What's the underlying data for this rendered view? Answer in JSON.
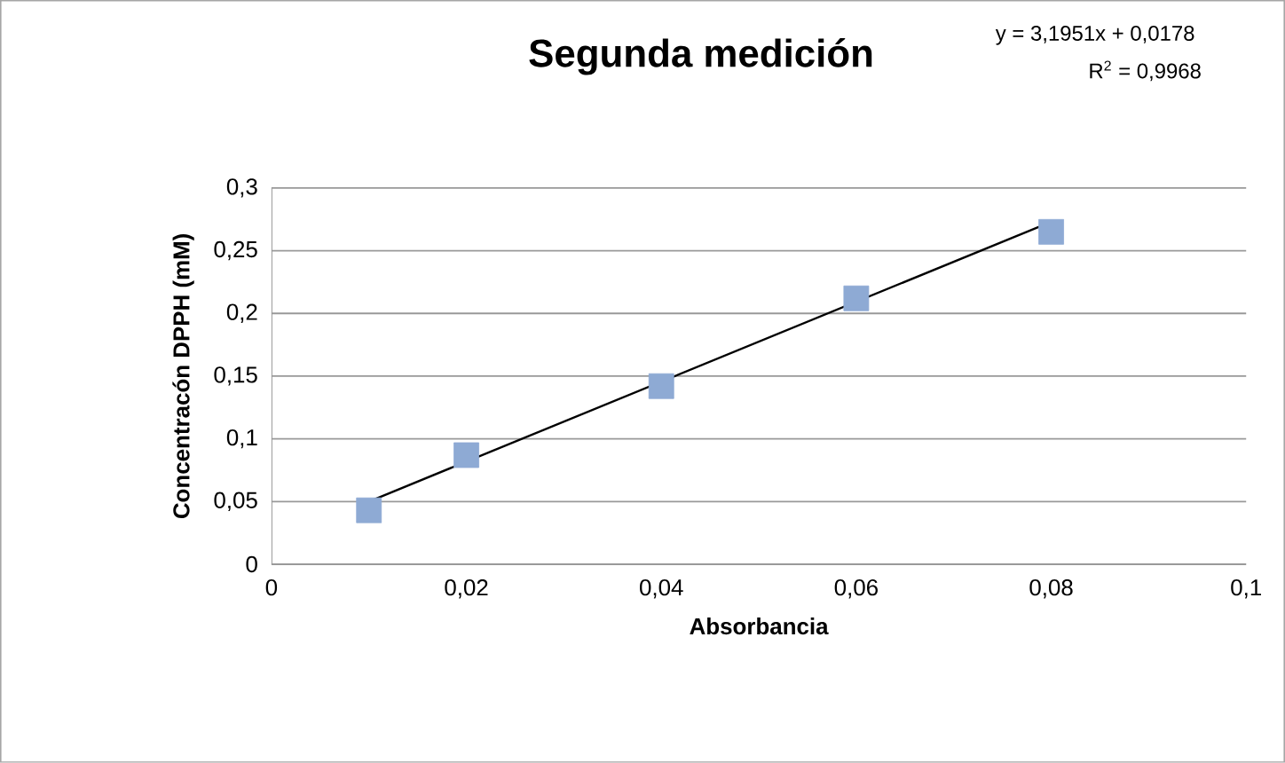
{
  "chart_data": {
    "type": "scatter",
    "title": "Segunda medición",
    "xlabel": "Absorbancia",
    "ylabel": "Concentracón DPPH (mM)",
    "annotations": [
      "y = 3,1951x + 0,0178",
      "R$^{2}$ = 0,9968"
    ],
    "xlim": [
      0,
      0.1
    ],
    "ylim": [
      0,
      0.3
    ],
    "xticks": [
      {
        "value": 0,
        "label": "0"
      },
      {
        "value": 0.02,
        "label": "0,02"
      },
      {
        "value": 0.04,
        "label": "0,04"
      },
      {
        "value": 0.06,
        "label": "0,06"
      },
      {
        "value": 0.08,
        "label": "0,08"
      },
      {
        "value": 0.1,
        "label": "0,1"
      }
    ],
    "yticks": [
      {
        "value": 0,
        "label": "0"
      },
      {
        "value": 0.05,
        "label": "0,05"
      },
      {
        "value": 0.1,
        "label": "0,1"
      },
      {
        "value": 0.15,
        "label": "0,15"
      },
      {
        "value": 0.2,
        "label": "0,2"
      },
      {
        "value": 0.25,
        "label": "0,25"
      },
      {
        "value": 0.3,
        "label": "0,3"
      }
    ],
    "grid": "y",
    "series": [
      {
        "color": "#8eaad4",
        "marker": "square",
        "x": [
          0.01,
          0.02,
          0.04,
          0.06,
          0.08
        ],
        "values": [
          0.043,
          0.087,
          0.142,
          0.212,
          0.265
        ]
      },
      {
        "type": "line",
        "color": "#000000",
        "marker": "none",
        "line_style": "solid",
        "x": [
          0.01,
          0.08
        ],
        "values": [
          0.05,
          0.273
        ]
      }
    ]
  }
}
